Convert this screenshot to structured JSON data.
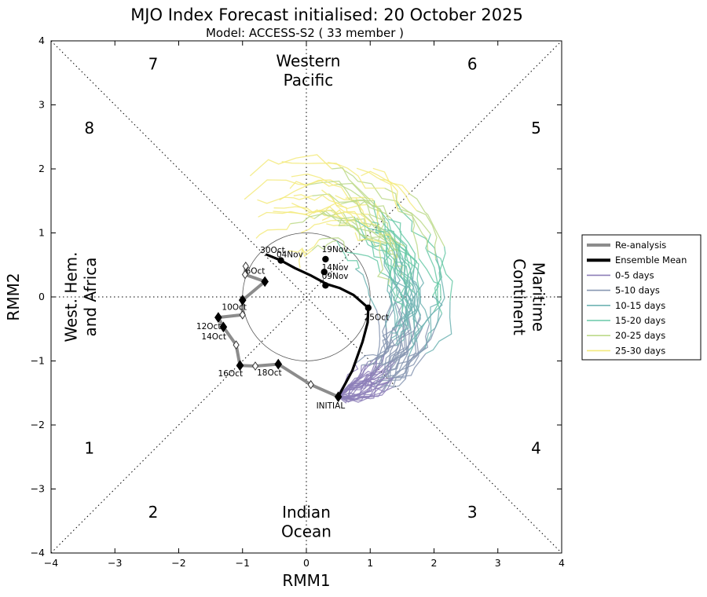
{
  "chart_data": {
    "type": "line",
    "title": "MJO Index Forecast initialised:  20  October 2025",
    "subtitle": "Model: ACCESS-S2 ( 33 member )",
    "xlabel": "RMM1",
    "ylabel": "RMM2",
    "xlim": [
      -4,
      4
    ],
    "ylim": [
      -4,
      4
    ],
    "xticks": [
      -4,
      -3,
      -2,
      -1,
      0,
      1,
      2,
      3,
      4
    ],
    "yticks": [
      -4,
      -3,
      -2,
      -1,
      0,
      1,
      2,
      3,
      4
    ],
    "xtick_labels": [
      "−4",
      "−3",
      "−2",
      "−1",
      "0",
      "1",
      "2",
      "3",
      "4"
    ],
    "ytick_labels": [
      "−4",
      "−3",
      "−2",
      "−1",
      "0",
      "1",
      "2",
      "3",
      "4"
    ],
    "unit_circle_radius": 1,
    "phases": [
      {
        "label": "1",
        "x": -3.4,
        "y": -2.45
      },
      {
        "label": "2",
        "x": -2.4,
        "y": -3.45
      },
      {
        "label": "3",
        "x": 2.6,
        "y": -3.45
      },
      {
        "label": "4",
        "x": 3.6,
        "y": -2.45
      },
      {
        "label": "5",
        "x": 3.6,
        "y": 2.55
      },
      {
        "label": "6",
        "x": 2.6,
        "y": 3.55
      },
      {
        "label": "7",
        "x": -2.4,
        "y": 3.55
      },
      {
        "label": "8",
        "x": -3.4,
        "y": 2.55
      }
    ],
    "regions": [
      {
        "name": "western-pacific",
        "lines": [
          "Western",
          "Pacific"
        ]
      },
      {
        "name": "indian-ocean",
        "lines": [
          "Indian",
          "Ocean"
        ]
      },
      {
        "name": "west-hem-africa",
        "lines": [
          "West. Hem.",
          "and Africa"
        ]
      },
      {
        "name": "maritime-continent",
        "lines": [
          "Maritime",
          "Continent"
        ]
      }
    ],
    "reanalysis": {
      "name": "Re-analysis",
      "color": "#8c8c8c",
      "points": [
        [
          -0.95,
          0.48
        ],
        [
          -0.96,
          0.35
        ],
        [
          -0.65,
          0.24
        ],
        [
          -1.0,
          -0.05
        ],
        [
          -1.0,
          -0.28
        ],
        [
          -1.38,
          -0.32
        ],
        [
          -1.3,
          -0.47
        ],
        [
          -1.1,
          -0.75
        ],
        [
          -1.04,
          -1.07
        ],
        [
          -0.8,
          -1.08
        ],
        [
          -0.44,
          -1.05
        ],
        [
          0.07,
          -1.37
        ],
        [
          0.5,
          -1.56
        ]
      ],
      "filled_markers": [
        [
          -0.65,
          0.24
        ],
        [
          -1.0,
          -0.05
        ],
        [
          -1.38,
          -0.32
        ],
        [
          -1.3,
          -0.47
        ],
        [
          -1.04,
          -1.07
        ],
        [
          -0.44,
          -1.05
        ],
        [
          0.5,
          -1.56
        ]
      ],
      "open_markers": [
        [
          -0.95,
          0.48
        ],
        [
          -0.96,
          0.35
        ],
        [
          -1.0,
          -0.28
        ],
        [
          -1.1,
          -0.75
        ],
        [
          -0.8,
          -1.08
        ],
        [
          0.07,
          -1.37
        ]
      ],
      "labels": [
        {
          "text": "6Oct",
          "x": -0.8,
          "y": 0.36
        },
        {
          "text": "10Oct",
          "x": -1.13,
          "y": -0.2
        },
        {
          "text": "12Oct",
          "x": -1.53,
          "y": -0.5
        },
        {
          "text": "14Oct",
          "x": -1.45,
          "y": -0.66
        },
        {
          "text": "16Oct",
          "x": -1.19,
          "y": -1.24
        },
        {
          "text": "18Oct",
          "x": -0.58,
          "y": -1.23
        },
        {
          "text": "INITIAL",
          "x": 0.38,
          "y": -1.74
        }
      ]
    },
    "ensemble_mean": {
      "name": "Ensemble Mean",
      "color": "#000000",
      "points": [
        [
          0.5,
          -1.56
        ],
        [
          0.72,
          -1.15
        ],
        [
          0.88,
          -0.7
        ],
        [
          0.96,
          -0.4
        ],
        [
          0.97,
          -0.17
        ],
        [
          0.74,
          0.03
        ],
        [
          0.52,
          0.14
        ],
        [
          0.32,
          0.2
        ],
        [
          0.08,
          0.33
        ],
        [
          -0.18,
          0.45
        ],
        [
          -0.4,
          0.57
        ],
        [
          -0.62,
          0.66
        ]
      ],
      "markers": [
        [
          0.97,
          -0.17
        ],
        [
          0.3,
          0.18
        ],
        [
          0.28,
          0.39
        ],
        [
          0.3,
          0.59
        ],
        [
          -0.4,
          0.57
        ]
      ],
      "labels": [
        {
          "text": "25Oct",
          "x": 1.1,
          "y": -0.36
        },
        {
          "text": "09Nov",
          "x": 0.45,
          "y": 0.28
        },
        {
          "text": "14Nov",
          "x": 0.45,
          "y": 0.42
        },
        {
          "text": "19Nov",
          "x": 0.45,
          "y": 0.7
        },
        {
          "text": "30Oct",
          "x": -0.53,
          "y": 0.69
        },
        {
          "text": "04Nov",
          "x": -0.26,
          "y": 0.62
        }
      ]
    },
    "legend": {
      "placement": "right",
      "items": [
        {
          "label": "Re-analysis",
          "color": "#8c8c8c",
          "style": "thick"
        },
        {
          "label": "Ensemble Mean",
          "color": "#000000",
          "style": "thick"
        },
        {
          "label": "0-5 days",
          "color": "#8d7fb8",
          "style": "thin"
        },
        {
          "label": "5-10 days",
          "color": "#8797b2",
          "style": "thin"
        },
        {
          "label": "10-15 days",
          "color": "#6fb3b3",
          "style": "thin"
        },
        {
          "label": "15-20 days",
          "color": "#69c9a7",
          "style": "thin"
        },
        {
          "label": "20-25 days",
          "color": "#bcd98a",
          "style": "thin"
        },
        {
          "label": "25-30 days",
          "color": "#f3ea7c",
          "style": "thin"
        }
      ]
    },
    "ensemble_members": 33,
    "forecast_segment_colors": [
      "#8d7fb8",
      "#8797b2",
      "#6fb3b3",
      "#69c9a7",
      "#bcd98a",
      "#f3ea7c"
    ]
  }
}
